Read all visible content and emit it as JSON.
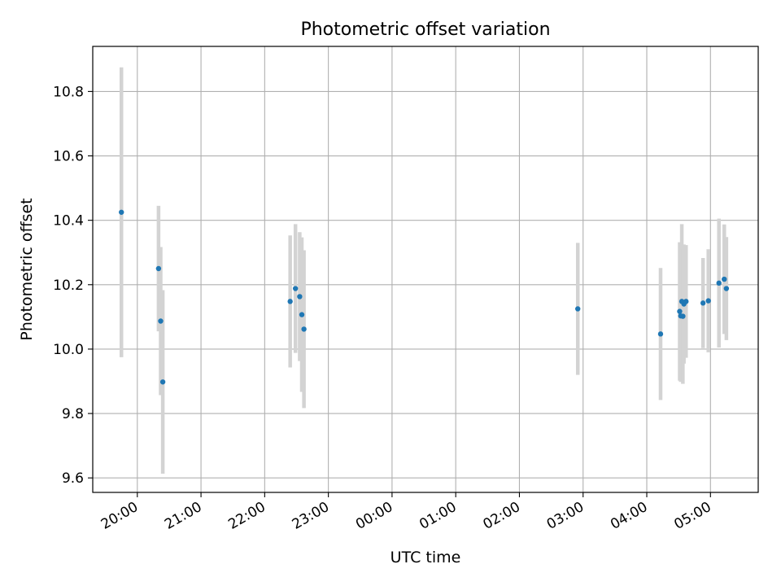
{
  "chart_data": {
    "type": "scatter",
    "title": "Photometric offset variation",
    "xlabel": "UTC time",
    "ylabel": "Photometric offset",
    "ylim": [
      9.555,
      10.94
    ],
    "xlim": [
      "19:18",
      "29:45"
    ],
    "grid": true,
    "y_ticks": [
      9.6,
      9.8,
      10.0,
      10.2,
      10.4,
      10.6,
      10.8
    ],
    "x_ticks": [
      "20:00",
      "21:00",
      "22:00",
      "23:00",
      "00:00",
      "01:00",
      "02:00",
      "03:00",
      "04:00",
      "05:00"
    ],
    "colors": {
      "points": "#1f77b4",
      "errorbars": "#d3d3d3",
      "grid": "#b0b0b0"
    },
    "series": [
      {
        "points": [
          {
            "x": "19:45",
            "y": 10.425,
            "err": 0.45
          },
          {
            "x": "20:20",
            "y": 10.25,
            "err": 0.195
          },
          {
            "x": "20:22",
            "y": 10.087,
            "err": 0.23
          },
          {
            "x": "20:24",
            "y": 9.898,
            "err": 0.285
          },
          {
            "x": "22:24",
            "y": 10.148,
            "err": 0.205
          },
          {
            "x": "22:29",
            "y": 10.188,
            "err": 0.2
          },
          {
            "x": "22:33",
            "y": 10.163,
            "err": 0.2
          },
          {
            "x": "22:35",
            "y": 10.107,
            "err": 0.24
          },
          {
            "x": "22:37",
            "y": 10.062,
            "err": 0.245
          },
          {
            "x": "26:55",
            "y": 10.125,
            "err": 0.205
          },
          {
            "x": "28:13",
            "y": 10.047,
            "err": 0.205
          },
          {
            "x": "28:31",
            "y": 10.117,
            "err": 0.215
          },
          {
            "x": "28:32",
            "y": 10.103,
            "err": 0.205
          },
          {
            "x": "28:33",
            "y": 10.148,
            "err": 0.24
          },
          {
            "x": "28:34",
            "y": 10.102,
            "err": 0.21
          },
          {
            "x": "28:35",
            "y": 10.14,
            "err": 0.185
          },
          {
            "x": "28:37",
            "y": 10.148,
            "err": 0.175
          },
          {
            "x": "28:53",
            "y": 10.143,
            "err": 0.14
          },
          {
            "x": "28:58",
            "y": 10.15,
            "err": 0.16
          },
          {
            "x": "29:08",
            "y": 10.205,
            "err": 0.2
          },
          {
            "x": "29:13",
            "y": 10.217,
            "err": 0.17
          },
          {
            "x": "29:15",
            "y": 10.188,
            "err": 0.16
          }
        ]
      }
    ]
  }
}
